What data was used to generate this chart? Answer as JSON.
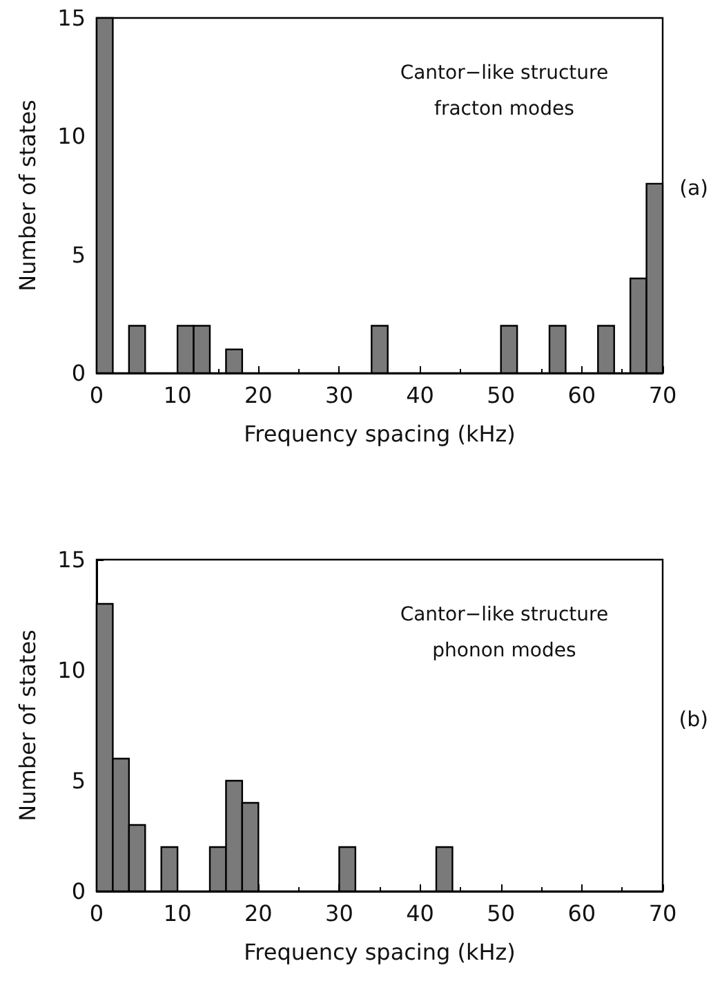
{
  "chart_data": [
    {
      "type": "histogram",
      "xlabel": "Frequency spacing (kHz)",
      "ylabel": "Number of states",
      "bins": [
        0,
        2,
        4,
        6,
        8,
        10,
        12,
        14,
        16,
        18,
        20,
        22,
        24,
        26,
        28,
        30,
        32,
        34,
        36,
        38,
        40,
        42,
        44,
        46,
        48,
        50,
        52,
        54,
        56,
        58,
        60,
        62,
        64,
        66,
        68,
        70
      ],
      "values": [
        15,
        0,
        2,
        0,
        0,
        2,
        2,
        0,
        1,
        0,
        0,
        0,
        0,
        0,
        0,
        0,
        0,
        2,
        0,
        0,
        0,
        0,
        0,
        0,
        0,
        2,
        0,
        0,
        2,
        0,
        0,
        2,
        0,
        4,
        8
      ],
      "color": "#7a7a7a",
      "xlim": [
        0,
        70
      ],
      "xticks": [
        0,
        10,
        20,
        30,
        40,
        50,
        60,
        70
      ],
      "ylim": [
        0,
        15
      ],
      "yticks": [
        0,
        5,
        10,
        15
      ],
      "grid": false,
      "annotations": [
        "Cantor−like structure",
        "fracton modes",
        "(a)"
      ]
    },
    {
      "type": "histogram",
      "xlabel": "Frequency spacing (kHz)",
      "ylabel": "Number of states",
      "bins": [
        0,
        2,
        4,
        6,
        8,
        10,
        12,
        14,
        16,
        18,
        20,
        22,
        24,
        26,
        28,
        30,
        32,
        34,
        36,
        38,
        40,
        42,
        44,
        46,
        48,
        50,
        52,
        54,
        56,
        58,
        60,
        62,
        64,
        66,
        68,
        70
      ],
      "values": [
        13,
        6,
        3,
        0,
        2,
        0,
        0,
        2,
        5,
        4,
        0,
        0,
        0,
        0,
        0,
        2,
        0,
        0,
        0,
        0,
        0,
        2,
        0,
        0,
        0,
        0,
        0,
        0,
        0,
        0,
        0,
        0,
        0,
        0,
        0
      ],
      "color": "#7a7a7a",
      "xlim": [
        0,
        70
      ],
      "xticks": [
        0,
        10,
        20,
        30,
        40,
        50,
        60,
        70
      ],
      "ylim": [
        0,
        15
      ],
      "yticks": [
        0,
        5,
        10,
        15
      ],
      "grid": false,
      "annotations": [
        "Cantor−like structure",
        "phonon modes",
        "(b)"
      ]
    }
  ]
}
